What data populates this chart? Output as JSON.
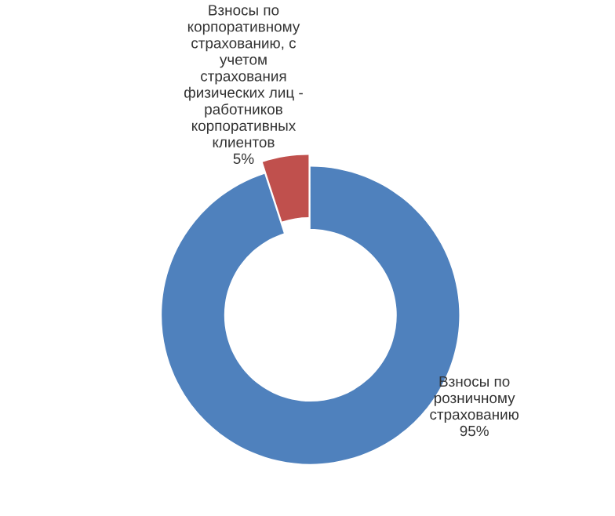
{
  "chart_data": {
    "type": "donut",
    "categories": [
      "Взносы по\nрозничному\nстрахованию",
      "Взносы по\nкорпоративному\nстрахованию, с\nучетом\nстрахования\nфизических лиц -\nработников\nкорпоративных\nклиентов"
    ],
    "values": [
      95,
      5
    ],
    "value_labels": [
      "95%",
      "5%"
    ],
    "colors": [
      "#4f81bd",
      "#c0504d"
    ]
  }
}
